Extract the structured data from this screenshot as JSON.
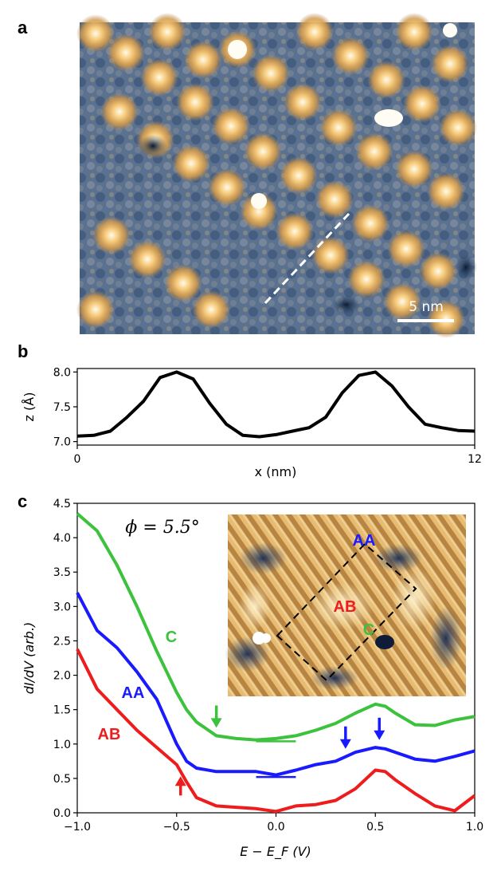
{
  "panels": {
    "a": "a",
    "b": "b",
    "c": "c"
  },
  "panel_a": {
    "scale_bar": "5 nm"
  },
  "colors": {
    "AB": "#ee1c1c",
    "AA": "#1a1aff",
    "C": "#3cc23c",
    "profile": "#000000"
  },
  "chart_data": [
    {
      "type": "line",
      "panel": "b",
      "xlabel": "x (nm)",
      "ylabel": "z (Å)",
      "xlim": [
        0,
        12
      ],
      "ylim": [
        6.95,
        8.05
      ],
      "xticks": [
        "0",
        "12"
      ],
      "yticks": [
        "7.0",
        "7.5",
        "8.0"
      ],
      "series": [
        {
          "x": [
            0,
            0.5,
            1.0,
            1.5,
            2.0,
            2.5,
            3.0,
            3.5,
            4.0,
            4.5,
            5.0,
            5.5,
            6.0,
            6.5,
            7.0,
            7.5,
            8.0,
            8.5,
            9.0,
            9.5,
            10.0,
            10.5,
            11.0,
            11.5,
            12.0
          ],
          "values": [
            7.08,
            7.09,
            7.15,
            7.35,
            7.58,
            7.92,
            8.0,
            7.9,
            7.55,
            7.25,
            7.09,
            7.07,
            7.1,
            7.15,
            7.2,
            7.35,
            7.7,
            7.95,
            8.0,
            7.8,
            7.5,
            7.25,
            7.2,
            7.16,
            7.15
          ]
        }
      ]
    },
    {
      "type": "line",
      "panel": "c",
      "xlabel": "E − E_F (V)",
      "ylabel": "dI/dV (arb.)",
      "xlim": [
        -1.0,
        1.0
      ],
      "ylim": [
        0,
        4.5
      ],
      "xticks": [
        "−1.0",
        "−0.5",
        "0.0",
        "0.5",
        "1.0"
      ],
      "yticks": [
        "0.0",
        "0.5",
        "1.0",
        "1.5",
        "2.0",
        "2.5",
        "3.0",
        "3.5",
        "4.0",
        "4.5"
      ],
      "x": [
        -1.0,
        -0.9,
        -0.8,
        -0.7,
        -0.6,
        -0.5,
        -0.45,
        -0.4,
        -0.3,
        -0.2,
        -0.1,
        0.0,
        0.1,
        0.2,
        0.3,
        0.4,
        0.5,
        0.55,
        0.6,
        0.7,
        0.8,
        0.9,
        1.0
      ],
      "series": [
        {
          "name": "C",
          "values": [
            4.35,
            4.1,
            3.6,
            3.0,
            2.35,
            1.75,
            1.5,
            1.32,
            1.12,
            1.08,
            1.06,
            1.08,
            1.12,
            1.2,
            1.3,
            1.45,
            1.58,
            1.55,
            1.45,
            1.28,
            1.27,
            1.35,
            1.4
          ]
        },
        {
          "name": "AA",
          "values": [
            3.2,
            2.65,
            2.4,
            2.05,
            1.65,
            1.0,
            0.75,
            0.65,
            0.6,
            0.6,
            0.6,
            0.55,
            0.62,
            0.7,
            0.75,
            0.88,
            0.95,
            0.93,
            0.88,
            0.78,
            0.75,
            0.82,
            0.9
          ]
        },
        {
          "name": "AB",
          "values": [
            2.38,
            1.8,
            1.5,
            1.2,
            0.95,
            0.7,
            0.45,
            0.22,
            0.1,
            0.08,
            0.06,
            0.02,
            0.1,
            0.12,
            0.18,
            0.35,
            0.62,
            0.6,
            0.48,
            0.28,
            0.1,
            0.03,
            0.25
          ]
        }
      ],
      "annotations": {
        "phi": "ϕ = 5.5°",
        "inset_labels": {
          "AA": "AA",
          "AB": "AB",
          "C": "C"
        },
        "arrows": [
          {
            "series": "C",
            "x": -0.3,
            "direction": "down"
          },
          {
            "series": "AA",
            "x": 0.35,
            "direction": "down"
          },
          {
            "series": "AA",
            "x": 0.52,
            "direction": "down"
          },
          {
            "series": "AB",
            "x": -0.48,
            "direction": "up"
          }
        ],
        "baselines": [
          {
            "series": "C",
            "x": [
              -0.1,
              0.1
            ],
            "y": 1.04
          },
          {
            "series": "AA",
            "x": [
              -0.1,
              0.1
            ],
            "y": 0.52
          }
        ]
      }
    }
  ]
}
